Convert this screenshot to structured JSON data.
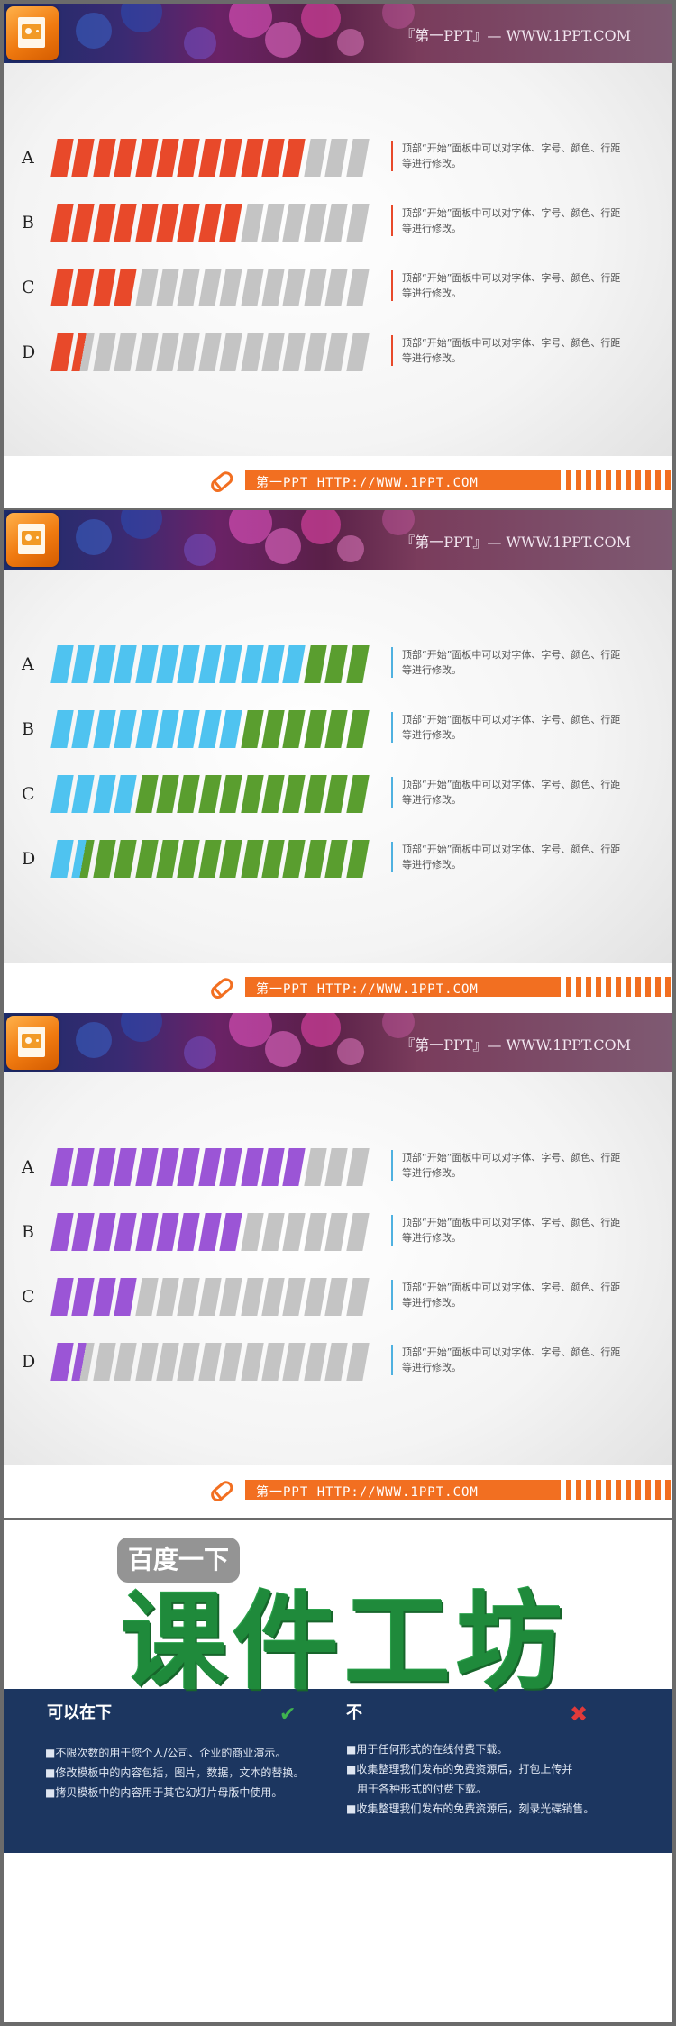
{
  "header": {
    "banner_text": "『第一PPT』— WWW.1PPT.COM"
  },
  "footer": {
    "text": "第一PPT HTTP://WWW.1PPT.COM"
  },
  "segments_total": 15,
  "slides": [
    {
      "fill_color": "#e8492a",
      "empty_color": "#c4c4c4",
      "desc_border": "#e8492a",
      "rows": [
        {
          "label": "A",
          "filled": 12,
          "desc": "顶部“开始”面板中可以对字体、字号、颜色、行距等进行修改。"
        },
        {
          "label": "B",
          "filled": 9,
          "desc": "顶部“开始”面板中可以对字体、字号、颜色、行距等进行修改。"
        },
        {
          "label": "C",
          "filled": 4,
          "desc": "顶部“开始”面板中可以对字体、字号、颜色、行距等进行修改。"
        },
        {
          "label": "D",
          "filled": 1.5,
          "desc": "顶部“开始”面板中可以对字体、字号、颜色、行距等进行修改。"
        }
      ]
    },
    {
      "fill_color": "#4fc3f0",
      "empty_color": "#5a9e2f",
      "desc_border": "#4fb1e0",
      "rows": [
        {
          "label": "A",
          "filled": 12,
          "desc": "顶部“开始”面板中可以对字体、字号、颜色、行距等进行修改。"
        },
        {
          "label": "B",
          "filled": 9,
          "desc": "顶部“开始”面板中可以对字体、字号、颜色、行距等进行修改。"
        },
        {
          "label": "C",
          "filled": 4,
          "desc": "顶部“开始”面板中可以对字体、字号、颜色、行距等进行修改。"
        },
        {
          "label": "D",
          "filled": 1.5,
          "desc": "顶部“开始”面板中可以对字体、字号、颜色、行距等进行修改。"
        }
      ]
    },
    {
      "fill_color": "#9b55d6",
      "empty_color": "#c4c4c4",
      "desc_border": "#4fb1e0",
      "rows": [
        {
          "label": "A",
          "filled": 12,
          "desc": "顶部“开始”面板中可以对字体、字号、颜色、行距等进行修改。"
        },
        {
          "label": "B",
          "filled": 9,
          "desc": "顶部“开始”面板中可以对字体、字号、颜色、行距等进行修改。"
        },
        {
          "label": "C",
          "filled": 4,
          "desc": "顶部“开始”面板中可以对字体、字号、颜色、行距等进行修改。"
        },
        {
          "label": "D",
          "filled": 1.5,
          "desc": "顶部“开始”面板中可以对字体、字号、颜色、行距等进行修改。"
        }
      ]
    }
  ],
  "license": {
    "left_heading": "可以在下",
    "left_items": [
      "■不限次数的用于您个人/公司、企业的商业演示。",
      "■修改模板中的内容包括，图片，数据，文本的替换。",
      "■拷贝模板中的内容用于其它幻灯片母版中使用。"
    ],
    "right_heading": "不",
    "right_items": [
      "■用于任何形式的在线付费下载。",
      "■收集整理我们发布的免费资源后，打包上传并",
      "　用于各种形式的付费下载。",
      "■收集整理我们发布的免费资源后，刻录光碟销售。"
    ],
    "watermark_badge": "百度一下",
    "watermark_text": "课件工坊"
  }
}
